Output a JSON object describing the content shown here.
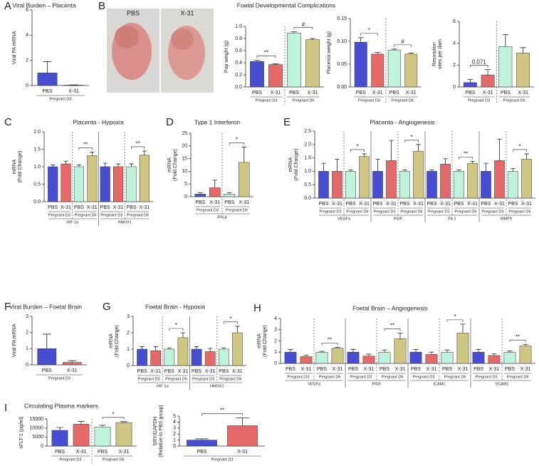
{
  "photo": {
    "labels": [
      "PBS",
      "X-31"
    ]
  },
  "chart_data": [
    {
      "type": "bar",
      "panel": "A",
      "title": "Viral Burden – Placenta",
      "ylabel": [
        "Viral PA mRNA"
      ],
      "ylim": [
        0,
        6
      ],
      "yticks": [
        0,
        2,
        4,
        6
      ],
      "colors": [
        "#4b52d8",
        "#e46a6a"
      ],
      "genes": [
        {
          "groups": [
            {
              "label": "Pregnant D3",
              "categories": [
                "PBS",
                "X-31"
              ],
              "values": [
                1.0,
                0.03
              ],
              "errors": [
                0.9,
                0.02
              ]
            }
          ]
        }
      ]
    },
    {
      "type": "bar",
      "panel": "B",
      "title": "Foetal Developmental Complications",
      "ylabel": [
        "Pup weight (g)"
      ],
      "ylim": [
        0,
        1.0
      ],
      "yticks": [
        {
          "value": 0,
          "label": "0.0"
        },
        0.2,
        0.4,
        0.6,
        0.8,
        {
          "value": 1,
          "label": "1.0"
        }
      ],
      "colors": [
        "#4b52d8",
        "#e46a6a",
        "#bff2da",
        "#cfc684"
      ],
      "genes": [
        {
          "groups": [
            {
              "label": "Pregnant D3",
              "categories": [
                "PBS",
                "X-31"
              ],
              "values": [
                0.42,
                0.37
              ],
              "errors": [
                0.02,
                0.01
              ],
              "sig": "**"
            },
            {
              "label": "Pregnant D6",
              "categories": [
                "PBS",
                "X-31"
              ],
              "values": [
                0.89,
                0.78
              ],
              "errors": [
                0.02,
                0.02
              ],
              "sig": "#"
            }
          ]
        }
      ]
    },
    {
      "type": "bar",
      "ylabel": [
        "Placenta weight (g)"
      ],
      "ylim": [
        0,
        0.15
      ],
      "yticks": [
        {
          "value": 0,
          "label": "0.00"
        },
        {
          "value": 0.05,
          "label": "0.05"
        },
        {
          "value": 0.1,
          "label": "0.10"
        },
        {
          "value": 0.15,
          "label": "0.15"
        }
      ],
      "colors": [
        "#4b52d8",
        "#e46a6a",
        "#bff2da",
        "#cfc684"
      ],
      "genes": [
        {
          "groups": [
            {
              "label": "Pregnant D3",
              "categories": [
                "PBS",
                "X-31"
              ],
              "values": [
                0.098,
                0.072
              ],
              "errors": [
                0.01,
                0.004
              ],
              "sig": "*"
            },
            {
              "label": "Pregnant D6",
              "categories": [
                "PBS",
                "X-31"
              ],
              "values": [
                0.081,
                0.072
              ],
              "errors": [
                0.002,
                0.002
              ],
              "sig": "#"
            }
          ]
        }
      ]
    },
    {
      "type": "bar",
      "ylabel": [
        "Resorption",
        "sites per dam"
      ],
      "ylim": [
        0,
        6
      ],
      "yticks": [
        0,
        2,
        4,
        6
      ],
      "colors": [
        "#4b52d8",
        "#e46a6a",
        "#bff2da",
        "#cfc684"
      ],
      "genes": [
        {
          "groups": [
            {
              "label": "Pregnant D3",
              "categories": [
                "PBS",
                "X-31"
              ],
              "values": [
                0.4,
                1.1
              ],
              "errors": [
                0.3,
                0.5
              ],
              "sig": "0.071"
            },
            {
              "label": "Pregnant D6",
              "categories": [
                "PBS",
                "X-31"
              ],
              "values": [
                3.7,
                3.1
              ],
              "errors": [
                1.1,
                0.5
              ]
            }
          ]
        }
      ]
    },
    {
      "type": "bar",
      "panel": "C",
      "title": "Placenta - Hypoxia",
      "ylabel": [
        "mRNA",
        "(Fold Change)"
      ],
      "ylim": [
        0,
        2
      ],
      "yticks": [
        {
          "value": 0,
          "label": "0.0"
        },
        0.5,
        {
          "value": 1,
          "label": "1.0"
        },
        1.5,
        {
          "value": 2,
          "label": "2.0"
        }
      ],
      "colors": [
        "#4b52d8",
        "#e46a6a",
        "#bff2da",
        "#cfc684"
      ],
      "genes": [
        {
          "label": "HIF-1α",
          "groups": [
            {
              "label": "Pregnant D3",
              "categories": [
                "PBS",
                "X-31"
              ],
              "values": [
                1.0,
                1.08
              ],
              "errors": [
                0.05,
                0.08
              ]
            },
            {
              "label": "Pregnant D6",
              "categories": [
                "PBS",
                "X-31"
              ],
              "values": [
                1.0,
                1.32
              ],
              "errors": [
                0.05,
                0.1
              ],
              "sig": "**"
            }
          ]
        },
        {
          "label": "HMOX1",
          "groups": [
            {
              "label": "Pregnant D3",
              "categories": [
                "PBS",
                "X-31"
              ],
              "values": [
                1.0,
                1.0
              ],
              "errors": [
                0.1,
                0.08
              ]
            },
            {
              "label": "Pregnant D6",
              "categories": [
                "PBS",
                "X-31"
              ],
              "values": [
                1.0,
                1.33
              ],
              "errors": [
                0.08,
                0.12
              ],
              "sig": "**"
            }
          ]
        }
      ]
    },
    {
      "type": "bar",
      "panel": "D",
      "title": "Type 1 Interferon",
      "ylabel": [
        "mRNA",
        "(Fold Change)"
      ],
      "ylim": [
        0,
        25
      ],
      "yticks": [
        0,
        5,
        10,
        15,
        20,
        25
      ],
      "colors": [
        "#4b52d8",
        "#e46a6a",
        "#bff2da",
        "#cfc684"
      ],
      "genes": [
        {
          "label": "IFN-β",
          "groups": [
            {
              "label": "Pregnant D3",
              "categories": [
                "PBS",
                "X-31"
              ],
              "values": [
                1.0,
                3.5
              ],
              "errors": [
                0.5,
                3
              ]
            },
            {
              "label": "Pregnant D6",
              "categories": [
                "PBS",
                "X-31"
              ],
              "values": [
                1.0,
                13.5
              ],
              "errors": [
                0.5,
                6
              ],
              "sig": "*"
            }
          ]
        }
      ]
    },
    {
      "type": "bar",
      "panel": "E",
      "title": "Placenta - Angiogenesis",
      "ylabel": [
        "mRNA",
        "(Fold Change)"
      ],
      "ylim": [
        0,
        2.5
      ],
      "yticks": [
        {
          "value": 0,
          "label": "0.0"
        },
        0.5,
        {
          "value": 1,
          "label": "1.0"
        },
        1.5,
        {
          "value": 2,
          "label": "2.0"
        },
        2.5
      ],
      "colors": [
        "#4b52d8",
        "#e46a6a",
        "#bff2da",
        "#cfc684"
      ],
      "genes": [
        {
          "label": "VEGFa",
          "groups": [
            {
              "label": "Pregnant D3",
              "categories": [
                "PBS",
                "X-31"
              ],
              "values": [
                1.0,
                1.0
              ],
              "errors": [
                0.3,
                0.45
              ]
            },
            {
              "label": "Pregnant D6",
              "categories": [
                "PBS",
                "X-31"
              ],
              "values": [
                1.0,
                1.55
              ],
              "errors": [
                0.05,
                0.1
              ],
              "sig": "*"
            }
          ]
        },
        {
          "label": "PlGF",
          "groups": [
            {
              "label": "Pregnant D3",
              "categories": [
                "PBS",
                "X-31"
              ],
              "values": [
                1.0,
                1.4
              ],
              "errors": [
                0.45,
                0.75
              ]
            },
            {
              "label": "Pregnant D6",
              "categories": [
                "PBS",
                "X-31"
              ],
              "values": [
                1.0,
                1.75
              ],
              "errors": [
                0.05,
                0.25
              ],
              "sig": "*"
            }
          ]
        },
        {
          "label": "Flt-1",
          "groups": [
            {
              "label": "Pregnant D3",
              "categories": [
                "PBS",
                "X-31"
              ],
              "values": [
                1.0,
                1.27
              ],
              "errors": [
                0.05,
                0.2
              ]
            },
            {
              "label": "Pregnant D6",
              "categories": [
                "PBS",
                "X-31"
              ],
              "values": [
                1.0,
                1.3
              ],
              "errors": [
                0.05,
                0.07
              ],
              "sig": "**"
            }
          ]
        },
        {
          "label": "MMP9",
          "groups": [
            {
              "label": "Pregnant D3",
              "categories": [
                "PBS",
                "X-31"
              ],
              "values": [
                1.0,
                1.4
              ],
              "errors": [
                0.3,
                0.8
              ]
            },
            {
              "label": "Pregnant D6",
              "categories": [
                "PBS",
                "X-31"
              ],
              "values": [
                1.0,
                1.45
              ],
              "errors": [
                0.1,
                0.2
              ],
              "sig": "*"
            }
          ]
        }
      ]
    },
    {
      "type": "bar",
      "panel": "F",
      "title": "Viral Burden – Foetal Brain",
      "ylabel": [
        "Viral PA mRNA"
      ],
      "ylim": [
        0,
        3
      ],
      "yticks": [
        0,
        1,
        2,
        3
      ],
      "colors": [
        "#4b52d8",
        "#e46a6a"
      ],
      "genes": [
        {
          "groups": [
            {
              "label": "Pregnant D3",
              "categories": [
                "PBS",
                "X-31"
              ],
              "values": [
                1.0,
                0.15
              ],
              "errors": [
                0.9,
                0.1
              ]
            }
          ]
        }
      ]
    },
    {
      "type": "bar",
      "panel": "G",
      "title": "Foetal Brain - Hypoxia",
      "ylabel": [
        "mRNA",
        "(Fold Change)"
      ],
      "ylim": [
        0,
        3
      ],
      "yticks": [
        0,
        1,
        2,
        3
      ],
      "colors": [
        "#4b52d8",
        "#e46a6a",
        "#bff2da",
        "#cfc684"
      ],
      "genes": [
        {
          "label": "HIF-1α",
          "groups": [
            {
              "label": "Pregnant D3",
              "categories": [
                "PBS",
                "X-31"
              ],
              "values": [
                1.0,
                0.9
              ],
              "errors": [
                0.15,
                0.25
              ]
            },
            {
              "label": "Pregnant D6",
              "categories": [
                "PBS",
                "X-31"
              ],
              "values": [
                1.0,
                1.7
              ],
              "errors": [
                0.08,
                0.3
              ],
              "sig": "*"
            }
          ]
        },
        {
          "label": "HMOX1",
          "groups": [
            {
              "label": "Pregnant D3",
              "categories": [
                "PBS",
                "X-31"
              ],
              "values": [
                1.0,
                0.85
              ],
              "errors": [
                0.15,
                0.2
              ]
            },
            {
              "label": "Pregnant D6",
              "categories": [
                "PBS",
                "X-31"
              ],
              "values": [
                1.0,
                2.0
              ],
              "errors": [
                0.08,
                0.4
              ],
              "sig": "*"
            }
          ]
        }
      ]
    },
    {
      "type": "bar",
      "panel": "H",
      "title": "Foetal Brain – Angiogenesis",
      "ylabel": [
        "mRNA",
        "(Fold Change)"
      ],
      "ylim": [
        0,
        4
      ],
      "yticks": [
        0,
        1,
        2,
        3,
        4
      ],
      "colors": [
        "#4b52d8",
        "#e46a6a",
        "#bff2da",
        "#cfc684"
      ],
      "genes": [
        {
          "label": "VEGFa",
          "groups": [
            {
              "label": "Pregnant D3",
              "categories": [
                "PBS",
                "X-31"
              ],
              "values": [
                1.0,
                0.6
              ],
              "errors": [
                0.25,
                0.12
              ]
            },
            {
              "label": "Pregnant D6",
              "categories": [
                "PBS",
                "X-31"
              ],
              "values": [
                1.0,
                1.35
              ],
              "errors": [
                0.08,
                0.07
              ],
              "sig": "**"
            }
          ]
        },
        {
          "label": "PlGF",
          "groups": [
            {
              "label": "Pregnant D3",
              "categories": [
                "PBS",
                "X-31"
              ],
              "values": [
                1.0,
                0.65
              ],
              "errors": [
                0.25,
                0.18
              ]
            },
            {
              "label": "Pregnant D6",
              "categories": [
                "PBS",
                "X-31"
              ],
              "values": [
                1.0,
                2.2
              ],
              "errors": [
                0.2,
                0.5
              ],
              "sig": "**"
            }
          ]
        },
        {
          "label": "ICAM1",
          "groups": [
            {
              "label": "Pregnant D3",
              "categories": [
                "PBS",
                "X-31"
              ],
              "values": [
                1.0,
                0.8
              ],
              "errors": [
                0.25,
                0.2
              ]
            },
            {
              "label": "Pregnant D6",
              "categories": [
                "PBS",
                "X-31"
              ],
              "values": [
                1.0,
                2.7
              ],
              "errors": [
                0.2,
                0.8
              ],
              "sig": "*"
            }
          ]
        },
        {
          "label": "VCAM1",
          "groups": [
            {
              "label": "Pregnant D3",
              "categories": [
                "PBS",
                "X-31"
              ],
              "values": [
                1.0,
                0.7
              ],
              "errors": [
                0.25,
                0.15
              ]
            },
            {
              "label": "Pregnant D6",
              "categories": [
                "PBS",
                "X-31"
              ],
              "values": [
                1.0,
                1.55
              ],
              "errors": [
                0.1,
                0.15
              ],
              "sig": "**"
            }
          ]
        }
      ]
    },
    {
      "type": "bar",
      "panel": "I",
      "title": "Circulating Plasma markers",
      "ylabel": [
        "sFLT-1 (pg/ml)"
      ],
      "ylim": [
        0,
        15000
      ],
      "yticks": [
        0,
        5000,
        10000,
        15000
      ],
      "colors": [
        "#4b52d8",
        "#e46a6a",
        "#bff2da",
        "#cfc684"
      ],
      "genes": [
        {
          "groups": [
            {
              "label": "Pregnant D3",
              "categories": [
                "PBS",
                "X-31"
              ],
              "values": [
                8700,
                12100
              ],
              "errors": [
                1600,
                1600
              ]
            },
            {
              "label": "Pregnant D6",
              "categories": [
                "PBS",
                "X-31"
              ],
              "values": [
                10600,
                13000
              ],
              "errors": [
                900,
                500
              ],
              "sig": "*"
            }
          ]
        }
      ]
    },
    {
      "type": "bar",
      "ylabel": [
        "SRY/GAPDH",
        "(Relative to PBS group)"
      ],
      "ylim": [
        0,
        5
      ],
      "yticks": [
        0,
        1,
        2,
        3,
        4,
        5
      ],
      "colors": [
        "#4b52d8",
        "#e46a6a"
      ],
      "genes": [
        {
          "groups": [
            {
              "label": "Pregnant D3",
              "categories": [
                "PBS",
                "X-31"
              ],
              "values": [
                1.0,
                3.4
              ],
              "errors": [
                0.2,
                1.3
              ],
              "sig": "**"
            }
          ]
        }
      ]
    }
  ]
}
